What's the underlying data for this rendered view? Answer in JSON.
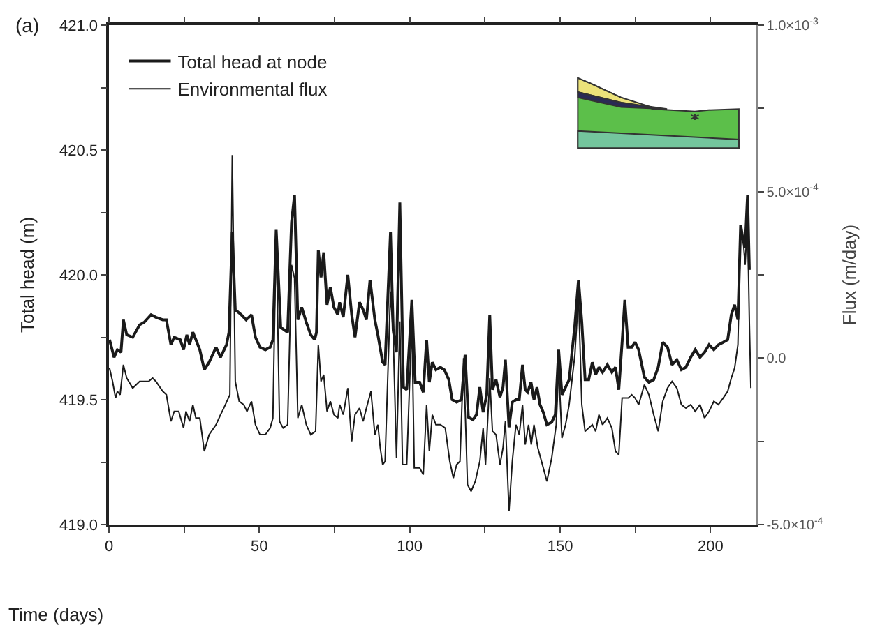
{
  "chart_data": {
    "type": "line",
    "xlabel": "Time (days)",
    "ylabel": "Total head (m)",
    "y2label": "Flux (m/day)",
    "annotations": [
      "(a)"
    ],
    "xlim": [
      0,
      215
    ],
    "xticks": [
      0,
      {
        "value": 25,
        "label": null
      },
      50,
      {
        "value": 75,
        "label": null
      },
      100,
      {
        "value": 125,
        "label": null
      },
      150,
      {
        "value": 175,
        "label": null
      },
      200
    ],
    "ylim": [
      419,
      421
    ],
    "yticks": [
      {
        "value": 419,
        "label": "419.0"
      },
      {
        "value": 419.25,
        "label": null
      },
      {
        "value": 419.5,
        "label": "419.5"
      },
      {
        "value": 419.75,
        "label": null
      },
      {
        "value": 420,
        "label": "420.0"
      },
      {
        "value": 420.25,
        "label": null
      },
      {
        "value": 420.5,
        "label": "420.5"
      },
      {
        "value": 420.75,
        "label": null
      },
      {
        "value": 421,
        "label": "421.0"
      }
    ],
    "y2lim": [
      -0.0005,
      0.001
    ],
    "y2ticks": [
      {
        "value": -0.0005,
        "label": "-5.0×10$^{-4}$"
      },
      {
        "value": -0.00025,
        "label": null
      },
      {
        "value": 0,
        "label": "0.0"
      },
      {
        "value": 0.00025,
        "label": null
      },
      {
        "value": 0.0005,
        "label": "5.0×10$^{-4}$"
      },
      {
        "value": 0.00075,
        "label": null
      },
      {
        "value": 0.001,
        "label": "1.0×10$^{-3}$"
      }
    ],
    "legend": "top left",
    "marker": "none",
    "line_style": "solid",
    "series": [
      {
        "name": "Total head at node",
        "color": "#1a1a1a",
        "axis": "y",
        "x": [
          0.2,
          1.7,
          2.8,
          4.0,
          4.8,
          5.9,
          7.9,
          10.2,
          11.7,
          14.0,
          15.6,
          17.9,
          19.1,
          20.6,
          21.7,
          23.7,
          24.8,
          25.9,
          26.8,
          27.9,
          28.9,
          30.2,
          31.7,
          33.3,
          35.6,
          37.1,
          39.1,
          39.9,
          41.0,
          42.0,
          44.0,
          45.6,
          47.4,
          48.7,
          50.2,
          52.0,
          53.6,
          54.5,
          55.6,
          57.1,
          59.4,
          60.7,
          61.7,
          62.8,
          64.1,
          65.6,
          67.1,
          68.4,
          69.0,
          69.6,
          70.5,
          71.4,
          72.5,
          73.6,
          74.8,
          76.1,
          76.7,
          77.9,
          79.4,
          80.7,
          81.8,
          83.3,
          84.5,
          85.6,
          86.8,
          88.4,
          89.4,
          91.0,
          91.8,
          93.6,
          94.5,
          95.6,
          96.7,
          97.9,
          99.0,
          100.7,
          101.8,
          103.3,
          104.5,
          105.6,
          106.5,
          107.5,
          108.7,
          110.2,
          111.5,
          113.0,
          114.1,
          115.6,
          117.2,
          118.4,
          119.5,
          121.0,
          122.2,
          123.3,
          124.4,
          125.6,
          126.6,
          127.5,
          128.7,
          130.0,
          131.0,
          131.8,
          133.0,
          134.1,
          135.3,
          136.4,
          137.5,
          138.4,
          139.2,
          140.3,
          141.3,
          142.3,
          143.3,
          144.4,
          145.6,
          147.2,
          148.4,
          149.5,
          150.6,
          151.8,
          153.0,
          154.9,
          156.1,
          157.2,
          158.3,
          159.5,
          160.7,
          161.8,
          162.9,
          164.1,
          165.7,
          167.2,
          168.4,
          169.5,
          170.6,
          171.5,
          172.6,
          173.8,
          174.9,
          176.1,
          178.0,
          179.5,
          181.1,
          182.6,
          184.1,
          185.7,
          187.2,
          188.8,
          190.3,
          191.8,
          193.4,
          194.9,
          196.5,
          198.0,
          199.5,
          201.1,
          202.6,
          204.2,
          205.7,
          206.9,
          208.0,
          209.1,
          210.0,
          210.8,
          211.5,
          212.3,
          212.9
        ],
        "values": [
          419.74,
          419.67,
          419.7,
          419.69,
          419.82,
          419.76,
          419.75,
          419.8,
          419.81,
          419.84,
          419.83,
          419.82,
          419.82,
          419.72,
          419.75,
          419.74,
          419.7,
          419.76,
          419.72,
          419.77,
          419.74,
          419.7,
          419.62,
          419.65,
          419.71,
          419.67,
          419.72,
          419.77,
          420.17,
          419.86,
          419.84,
          419.82,
          419.84,
          419.75,
          419.71,
          419.7,
          419.71,
          419.74,
          420.18,
          419.79,
          419.77,
          420.21,
          420.32,
          419.82,
          419.87,
          419.81,
          419.76,
          419.74,
          419.77,
          420.1,
          419.99,
          420.09,
          419.88,
          419.95,
          419.87,
          419.84,
          419.89,
          419.83,
          420.0,
          419.84,
          419.75,
          419.89,
          419.86,
          419.82,
          419.98,
          419.82,
          419.76,
          419.65,
          419.64,
          420.17,
          419.78,
          419.69,
          420.29,
          419.55,
          419.54,
          419.9,
          419.57,
          419.57,
          419.53,
          419.74,
          419.57,
          419.65,
          419.62,
          419.63,
          419.62,
          419.58,
          419.5,
          419.49,
          419.5,
          419.68,
          419.43,
          419.42,
          419.44,
          419.55,
          419.45,
          419.52,
          419.84,
          419.54,
          419.58,
          419.51,
          419.55,
          419.66,
          419.39,
          419.49,
          419.5,
          419.5,
          419.64,
          419.54,
          419.53,
          419.57,
          419.5,
          419.55,
          419.48,
          419.45,
          419.4,
          419.41,
          419.44,
          419.7,
          419.52,
          419.55,
          419.58,
          419.8,
          419.98,
          419.81,
          419.58,
          419.58,
          419.65,
          419.6,
          419.63,
          419.61,
          419.64,
          419.61,
          419.63,
          419.54,
          419.73,
          419.9,
          419.71,
          419.71,
          419.73,
          419.7,
          419.59,
          419.57,
          419.58,
          419.63,
          419.73,
          419.71,
          419.64,
          419.66,
          419.62,
          419.63,
          419.67,
          419.7,
          419.67,
          419.69,
          419.72,
          419.7,
          419.72,
          419.73,
          419.74,
          419.84,
          419.88,
          419.82,
          420.2,
          420.14,
          420.11,
          420.32,
          420.02
        ]
      },
      {
        "name": "Environmental flux",
        "color": "#1a1a1a",
        "axis": "y2",
        "x": [
          0.2,
          1.2,
          2.2,
          2.8,
          3.7,
          4.8,
          5.9,
          7.9,
          10.2,
          11.7,
          13.2,
          14.5,
          15.6,
          17.9,
          19.1,
          20.6,
          21.7,
          23.2,
          24.8,
          25.6,
          26.8,
          27.9,
          28.9,
          30.2,
          31.7,
          33.3,
          35.6,
          37.1,
          38.2,
          40.2,
          41.0,
          42.0,
          43.3,
          44.8,
          45.9,
          47.4,
          48.7,
          50.2,
          52.0,
          53.6,
          54.5,
          55.6,
          56.7,
          57.9,
          59.4,
          60.7,
          61.7,
          62.8,
          64.1,
          65.6,
          67.1,
          68.7,
          69.6,
          70.5,
          71.4,
          72.5,
          73.6,
          74.8,
          76.1,
          76.7,
          77.9,
          79.4,
          80.7,
          81.8,
          83.3,
          84.5,
          85.6,
          87.1,
          88.4,
          89.4,
          90.2,
          91.0,
          91.8,
          93.6,
          94.5,
          95.6,
          96.7,
          97.6,
          99.0,
          99.9,
          100.7,
          101.5,
          103.3,
          104.5,
          105.6,
          106.5,
          107.5,
          108.7,
          110.2,
          111.8,
          113.3,
          114.5,
          115.6,
          116.7,
          117.9,
          119.2,
          120.4,
          121.8,
          123.3,
          124.4,
          125.2,
          126.6,
          127.5,
          128.7,
          130.0,
          131.0,
          131.8,
          133.0,
          134.1,
          135.3,
          136.4,
          137.5,
          138.4,
          139.5,
          140.4,
          141.3,
          142.6,
          143.8,
          145.6,
          147.2,
          148.7,
          149.5,
          150.6,
          151.8,
          153.0,
          154.9,
          156.1,
          157.2,
          158.3,
          159.5,
          160.7,
          161.8,
          162.9,
          164.1,
          165.7,
          167.2,
          168.4,
          169.5,
          170.6,
          171.5,
          172.6,
          173.8,
          174.9,
          176.1,
          178.0,
          179.5,
          181.1,
          182.6,
          184.1,
          185.7,
          187.2,
          188.8,
          190.3,
          191.8,
          193.4,
          194.9,
          196.5,
          198.0,
          199.5,
          201.1,
          202.6,
          204.2,
          205.7,
          206.9,
          208.0,
          209.1,
          210.0,
          210.8,
          211.5,
          212.3,
          212.9,
          213.4
        ],
        "values": [
          -3e-05,
          -7e-05,
          -0.00012,
          -0.0001,
          -0.00011,
          -2e-05,
          -6e-05,
          -9e-05,
          -7e-05,
          -7e-05,
          -7e-05,
          -6e-05,
          -7e-05,
          -0.0001,
          -0.00011,
          -0.00019,
          -0.00016,
          -0.00016,
          -0.00021,
          -0.00016,
          -0.00019,
          -0.00014,
          -0.00018,
          -0.00018,
          -0.00028,
          -0.00023,
          -0.0002,
          -0.00017,
          -0.00015,
          -0.00011,
          0.00061,
          -7e-05,
          -0.00013,
          -0.00014,
          -0.00016,
          -0.00013,
          -0.0002,
          -0.00023,
          -0.00023,
          -0.00021,
          -0.00018,
          0.00038,
          -0.00019,
          -0.00021,
          -0.0002,
          0.00028,
          0.00024,
          -0.00018,
          -0.00014,
          -0.0002,
          -0.00023,
          -0.00022,
          4e-05,
          -7e-05,
          -5e-05,
          -0.00016,
          -0.00013,
          -0.00017,
          -0.00018,
          -0.00014,
          -0.00017,
          -9e-05,
          -0.00025,
          -0.00017,
          -0.00015,
          -0.00019,
          -0.00015,
          -0.0001,
          -0.00023,
          -0.0002,
          -0.00027,
          -0.00032,
          -0.00031,
          0.0002,
          7e-05,
          -0.0003,
          0.00011,
          -0.00032,
          -0.00032,
          -9e-05,
          0.00011,
          -0.00033,
          -0.00033,
          -0.00035,
          -0.00014,
          -0.00028,
          -0.00017,
          -0.0002,
          -0.0002,
          -0.00021,
          -0.00031,
          -0.00036,
          -0.00032,
          -0.00031,
          0,
          -0.00038,
          -0.0004,
          -0.00037,
          -0.00031,
          -0.00021,
          -0.00032,
          -6e-05,
          -0.00022,
          -0.00023,
          -0.00032,
          -0.00027,
          -0.00019,
          -0.00046,
          -0.00031,
          -0.0002,
          -0.00023,
          -0.00014,
          -0.00026,
          -0.0002,
          -0.00026,
          -0.0002,
          -0.00027,
          -0.00031,
          -0.00037,
          -0.0003,
          -0.0002,
          -3e-05,
          -0.00024,
          -0.0002,
          -0.00014,
          1e-05,
          0.00019,
          -0.00014,
          -0.00022,
          -0.00021,
          -0.0002,
          -0.00022,
          -0.00017,
          -0.0002,
          -0.00018,
          -0.00021,
          -0.00028,
          -0.00029,
          -0.00012,
          -0.00012,
          -0.00012,
          -0.00011,
          -0.00012,
          -0.00014,
          -8e-05,
          -0.00011,
          -0.00017,
          -0.00022,
          -0.00013,
          -9e-05,
          -7e-05,
          -9e-05,
          -0.00014,
          -0.00015,
          -0.00014,
          -0.00016,
          -0.00014,
          -0.00018,
          -0.00016,
          -0.00013,
          -0.00014,
          -0.00012,
          -0.0001,
          -6e-05,
          -3e-05,
          4e-05,
          0.0004,
          0.00036,
          0.00028,
          0.00042,
          0.00011,
          -9e-05
        ]
      }
    ]
  }
}
